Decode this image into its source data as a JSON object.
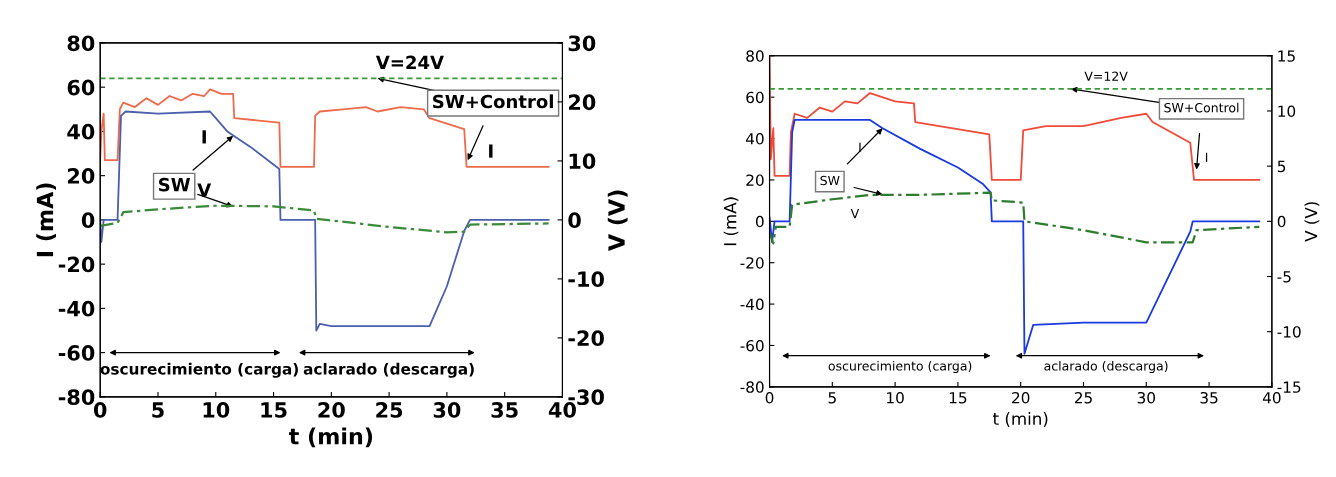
{
  "chart_data": [
    {
      "type": "line",
      "xlabel": "t (min)",
      "ylabel": "I (mA)",
      "y2label": "V (V)",
      "xlim": [
        0,
        40
      ],
      "xticks": [
        0,
        5,
        10,
        15,
        20,
        25,
        30,
        35,
        40
      ],
      "ylim": [
        -80,
        80
      ],
      "yticks": [
        -80,
        -60,
        -40,
        -20,
        0,
        20,
        40,
        60,
        80
      ],
      "y2lim": [
        -30,
        30
      ],
      "y2ticks": [
        -30,
        -20,
        -10,
        0,
        10,
        20,
        30
      ],
      "grid": false,
      "legend": false,
      "series": [
        {
          "color": "#ee6a4a",
          "line_style": "solid",
          "x": [
            0,
            0.1,
            0.3,
            0.4,
            1.5,
            1.7,
            2,
            3,
            4,
            5,
            6,
            7,
            8,
            9,
            9.5,
            10.5,
            11.5,
            11.6,
            15.5,
            15.6,
            18.5,
            18.6,
            19,
            21,
            23,
            24,
            26,
            28,
            28.5,
            31.5,
            31.7,
            38.8
          ],
          "values": [
            27,
            40,
            48,
            27,
            27,
            50,
            53,
            51,
            55,
            52,
            56,
            54,
            57,
            56,
            59,
            57,
            57,
            46,
            44,
            24,
            24,
            47,
            49,
            50,
            51,
            49,
            51,
            50,
            46,
            41,
            24,
            24
          ]
        },
        {
          "color": "#4a5fae",
          "line_style": "solid",
          "x": [
            0,
            0.1,
            0.3,
            1.5,
            1.8,
            2.2,
            5,
            9.5,
            10,
            11,
            13,
            15.5,
            15.6,
            18.6,
            18.7,
            19,
            20,
            25,
            28.5,
            30,
            31.5,
            32,
            38.8
          ],
          "values": [
            0,
            -10,
            0,
            0,
            47,
            49,
            48,
            49,
            46,
            40,
            33,
            23,
            0,
            0,
            -50,
            -47,
            -48,
            -48,
            -48,
            -30,
            -5,
            0,
            0
          ]
        },
        {
          "color": "#3a8a3a",
          "line_style": "dashdot",
          "axis": "y2",
          "x": [
            0,
            1.5,
            2,
            5,
            10,
            15,
            18.5,
            18.7,
            25,
            30,
            31.5,
            32,
            38.8
          ],
          "values": [
            -1,
            -0.5,
            1.3,
            1.8,
            2.4,
            2.3,
            1.6,
            0.2,
            -1.2,
            -2.1,
            -2,
            -0.8,
            -0.6
          ]
        }
      ],
      "ref_lines": [
        {
          "axis": "y2",
          "value": 24,
          "label": "V=24V",
          "color": "#3a9a3a",
          "line_style": "dashed"
        }
      ],
      "annotations": [
        {
          "text": "SW+Control",
          "x": 24,
          "y": 64
        },
        {
          "text": "I",
          "x": 31.8,
          "y": 27
        },
        "SW",
        {
          "text": "I",
          "x": 11.5,
          "y": 38
        },
        {
          "text": "V",
          "x": 11.5,
          "y": 6
        },
        "oscurecimiento (carga)",
        "aclarado (descarga)"
      ]
    },
    {
      "type": "line",
      "xlabel": "t (min)",
      "ylabel": "I (mA)",
      "y2label": "V (V)",
      "xlim": [
        0,
        40
      ],
      "xticks": [
        0,
        5,
        10,
        15,
        20,
        25,
        30,
        35,
        40
      ],
      "ylim": [
        -80,
        80
      ],
      "yticks": [
        -80,
        -60,
        -40,
        -20,
        0,
        20,
        40,
        60,
        80
      ],
      "y2lim": [
        -15,
        15
      ],
      "y2ticks": [
        -15,
        -10,
        -5,
        0,
        5,
        10,
        15
      ],
      "grid": false,
      "legend": false,
      "series": [
        {
          "color": "#f04a3a",
          "line_style": "solid",
          "x": [
            0,
            0.1,
            0.3,
            0.4,
            1.6,
            1.7,
            2,
            3,
            4,
            5,
            6,
            7,
            8,
            10,
            11.5,
            11.6,
            17.5,
            17.7,
            20,
            20.2,
            22,
            25,
            28,
            30,
            30.5,
            33.5,
            33.8,
            39
          ],
          "values": [
            80,
            30,
            45,
            22,
            22,
            43,
            52,
            50,
            55,
            53,
            58,
            57,
            62,
            58,
            57,
            48,
            42,
            20,
            20,
            44,
            46,
            46,
            50,
            52,
            48,
            38,
            20,
            20
          ]
        },
        {
          "color": "#1a3adf",
          "line_style": "solid",
          "x": [
            0,
            0.2,
            0.4,
            1.6,
            1.8,
            2,
            8,
            9,
            12,
            15,
            17,
            17.6,
            17.7,
            20.2,
            20.3,
            21,
            25,
            30,
            33.5,
            33.7,
            39
          ],
          "values": [
            2,
            -10,
            0,
            0,
            43,
            49,
            49,
            45,
            35,
            26,
            18,
            14,
            0,
            0,
            -64,
            -50,
            -49,
            -49,
            -5,
            0,
            0
          ]
        },
        {
          "color": "#2e7d2e",
          "line_style": "dashdot",
          "axis": "y2",
          "x": [
            0,
            0.3,
            0.5,
            1.6,
            1.8,
            5,
            8,
            12,
            17.6,
            17.7,
            20.2,
            20.3,
            25,
            30,
            33.7,
            34,
            39
          ],
          "values": [
            -1,
            -2,
            -0.5,
            -0.5,
            1.5,
            2,
            2.4,
            2.4,
            2.6,
            1.9,
            1.7,
            0,
            -0.8,
            -1.9,
            -1.9,
            -0.8,
            -0.5
          ]
        }
      ],
      "ref_lines": [
        {
          "axis": "y2",
          "value": 12,
          "label": "V=12V",
          "color": "#3a9a3a",
          "line_style": "dashed"
        }
      ],
      "annotations": [
        {
          "text": "SW+Control",
          "x": 24,
          "y": 64
        },
        {
          "text": "I",
          "x": 34,
          "y": 25
        },
        "SW",
        {
          "text": "I",
          "x": 9,
          "y": 45
        },
        {
          "text": "V",
          "x": 9,
          "y": 13
        },
        "oscurecimiento (carga)",
        "aclarado (descarga)"
      ]
    }
  ]
}
